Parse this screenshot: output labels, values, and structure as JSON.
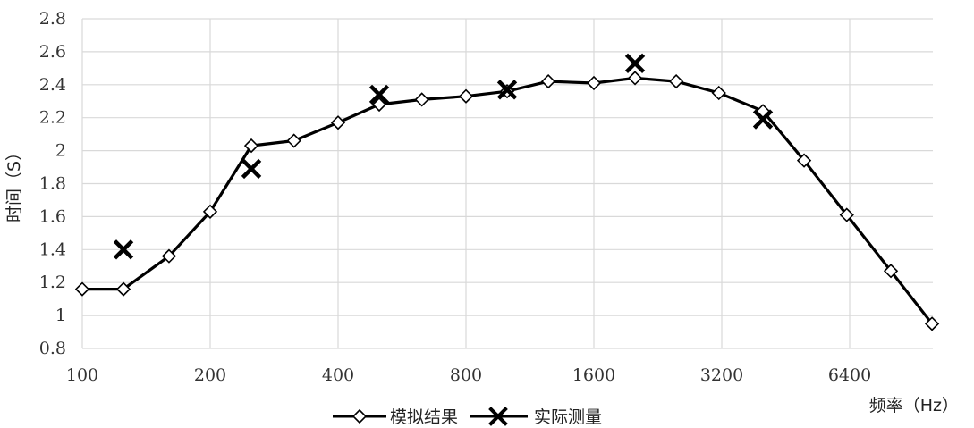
{
  "chart_data": {
    "type": "line",
    "title": "",
    "xlabel": "频率（Hz）",
    "ylabel": "时间（S）",
    "x_scale": "log2",
    "x_ticks": [
      100,
      200,
      400,
      800,
      1600,
      3200,
      6400
    ],
    "x_tick_labels": [
      "100",
      "200",
      "400",
      "800",
      "1600",
      "3200",
      "6400"
    ],
    "ylim": [
      0.8,
      2.8
    ],
    "y_ticks": [
      0.8,
      1,
      1.2,
      1.4,
      1.6,
      1.8,
      2,
      2.2,
      2.4,
      2.6,
      2.8
    ],
    "y_tick_labels": [
      "0.8",
      "1",
      "1.2",
      "1.4",
      "1.6",
      "1.8",
      "2",
      "2.2",
      "2.4",
      "2.6",
      "2.8"
    ],
    "grid": true,
    "legend_position": "bottom-center",
    "series": [
      {
        "name": "模拟结果",
        "marker": "diamond",
        "color": "#000000",
        "x": [
          100,
          125,
          160,
          200,
          250,
          315,
          400,
          500,
          630,
          800,
          1000,
          1250,
          1600,
          2000,
          2500,
          3150,
          4000,
          5000,
          6300,
          8000,
          10000
        ],
        "values": [
          1.16,
          1.16,
          1.36,
          1.63,
          2.03,
          2.06,
          2.17,
          2.28,
          2.31,
          2.33,
          2.36,
          2.42,
          2.41,
          2.44,
          2.42,
          2.35,
          2.24,
          1.94,
          1.61,
          1.27,
          0.95
        ]
      },
      {
        "name": "实际测量",
        "marker": "cross",
        "color": "#000000",
        "x": [
          125,
          250,
          500,
          1000,
          2000,
          4000
        ],
        "values": [
          1.4,
          1.89,
          2.34,
          2.37,
          2.53,
          2.19
        ]
      }
    ]
  }
}
